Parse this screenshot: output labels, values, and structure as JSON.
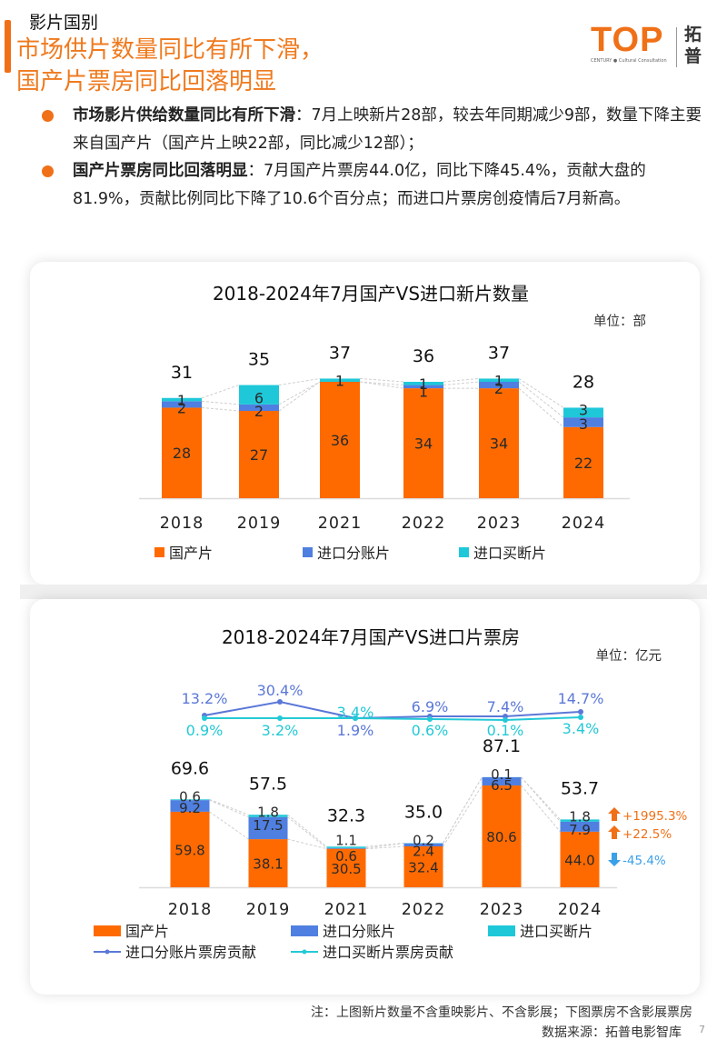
{
  "header": {
    "section": "影片国别",
    "headline_lines": [
      "市场供片数量同比有所下滑，",
      "国产片票房同比回落明显"
    ],
    "logo": {
      "word": "TOP",
      "tagline": "CENTURY ● Cultural Consultation",
      "cn": "拓普"
    }
  },
  "bullets": [
    {
      "lead": "市场影片供给数量同比有所下滑",
      "text": "：7月上映新片28部，较去年同期减少9部，数量下降主要来自国产片（国产片上映22部，同比减少12部）；"
    },
    {
      "lead": "国产片票房同比回落明显",
      "text": "：7月国产片票房44.0亿，同比下降45.4%，贡献大盘的81.9%，贡献比例同比下降了10.6个百分点；而进口片票房创疫情后7月新高。"
    }
  ],
  "colors": {
    "accent": "#f07018",
    "domestic": "#ff6a00",
    "import_split": "#4f7fe0",
    "import_buyout": "#1ec8d8",
    "line_split": "#5b78d8",
    "line_buyout": "#23c9d6",
    "up": "#f07018",
    "down": "#3aa0e8"
  },
  "chart_data": [
    {
      "type": "bar",
      "stacked": true,
      "title": "2018-2024年7月国产VS进口新片数量",
      "unit": "单位：部",
      "categories": [
        "2018",
        "2019",
        "2021",
        "2022",
        "2023",
        "2024"
      ],
      "series": [
        {
          "name": "国产片",
          "values": [
            28,
            27,
            36,
            34,
            34,
            22
          ]
        },
        {
          "name": "进口分账片",
          "values": [
            2,
            2,
            0,
            1,
            2,
            3
          ]
        },
        {
          "name": "进口买断片",
          "values": [
            1,
            6,
            1,
            1,
            1,
            3
          ]
        }
      ],
      "segment_labels": [
        [
          "28",
          "2",
          "1"
        ],
        [
          "27",
          "2",
          "6"
        ],
        [
          "36",
          "",
          "1"
        ],
        [
          "34",
          "1",
          "1"
        ],
        [
          "34",
          "2",
          "1"
        ],
        [
          "22",
          "3",
          "3"
        ]
      ],
      "totals": [
        31,
        35,
        37,
        36,
        37,
        28
      ],
      "legend": [
        "国产片",
        "进口分账片",
        "进口买断片"
      ],
      "legend_position": "bottom",
      "ylim": [
        0,
        40
      ]
    },
    {
      "type": "bar",
      "stacked": true,
      "title": "2018-2024年7月国产VS进口片票房",
      "unit": "单位：亿元",
      "categories": [
        "2018",
        "2019",
        "2021",
        "2022",
        "2023",
        "2024"
      ],
      "series": [
        {
          "name": "国产片",
          "values": [
            59.8,
            38.1,
            30.5,
            32.4,
            80.6,
            44.0
          ]
        },
        {
          "name": "进口分账片",
          "values": [
            9.2,
            17.5,
            0.6,
            2.4,
            6.5,
            7.9
          ]
        },
        {
          "name": "进口买断片",
          "values": [
            0.6,
            1.8,
            1.1,
            0.2,
            0.1,
            1.8
          ]
        }
      ],
      "segment_labels": [
        [
          "59.8",
          "9.2",
          "0.6"
        ],
        [
          "38.1",
          "17.5",
          "1.8"
        ],
        [
          "30.5",
          "0.6",
          "1.1"
        ],
        [
          "32.4",
          "2.4",
          "0.2"
        ],
        [
          "80.6",
          "6.5",
          "0.1"
        ],
        [
          "44.0",
          "7.9",
          "1.8"
        ]
      ],
      "totals": [
        "69.6",
        "57.5",
        "32.3",
        "35.0",
        "87.1",
        "53.7"
      ],
      "lines": [
        {
          "name": "进口分账片票房贡献",
          "values": [
            13.2,
            30.4,
            1.9,
            6.9,
            7.4,
            14.7
          ],
          "labels": [
            "13.2%",
            "30.4%",
            "1.9%",
            "6.9%",
            "7.4%",
            "14.7%"
          ]
        },
        {
          "name": "进口买断片票房贡献",
          "values": [
            0.9,
            3.2,
            3.4,
            0.6,
            0.1,
            3.4
          ],
          "labels": [
            "0.9%",
            "3.2%",
            "3.4%",
            "0.6%",
            "0.1%",
            "3.4%"
          ]
        }
      ],
      "yoy_annotations": [
        {
          "direction": "up",
          "text": "+1995.3%",
          "series": "进口买断片"
        },
        {
          "direction": "up",
          "text": "+22.5%",
          "series": "进口分账片"
        },
        {
          "direction": "down",
          "text": "-45.4%",
          "series": "国产片"
        }
      ],
      "legend": [
        "国产片",
        "进口分账片",
        "进口买断片",
        "进口分账片票房贡献",
        "进口买断片票房贡献"
      ],
      "legend_position": "bottom",
      "ylim": [
        0,
        90
      ]
    }
  ],
  "footer": {
    "note": "注：上图新片数量不含重映影片、不含影展；下图票房不含影展票房",
    "source": "数据来源：拓普电影智库",
    "page": "7"
  }
}
